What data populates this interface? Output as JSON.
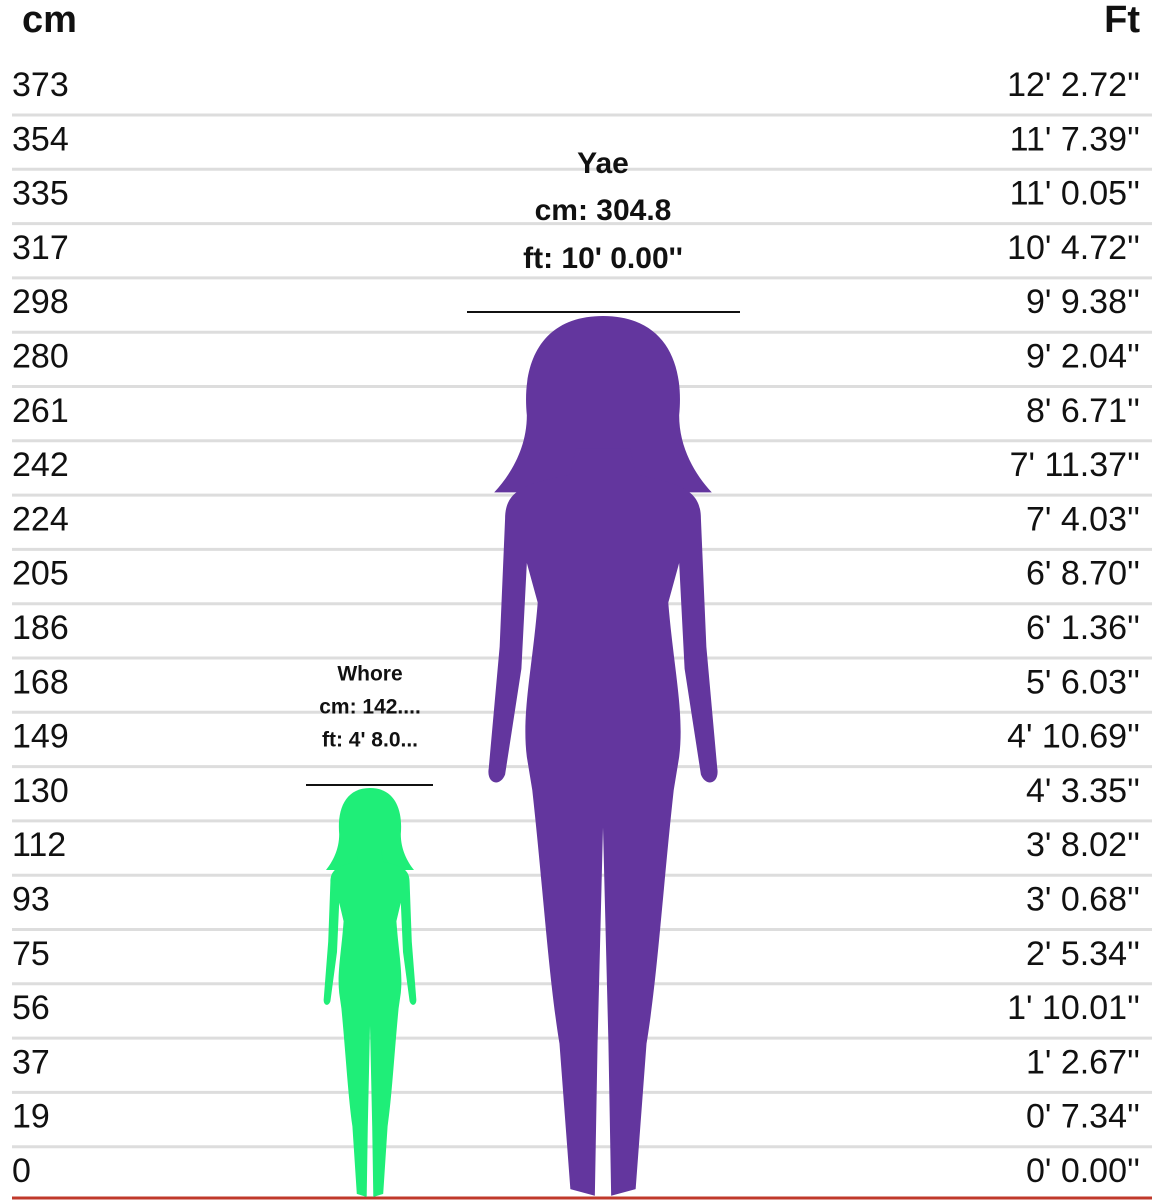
{
  "scale": {
    "cm_header": "cm",
    "ft_header": "Ft",
    "rows": [
      {
        "cm": "373",
        "ft": "12' 2.72''"
      },
      {
        "cm": "354",
        "ft": "11' 7.39''"
      },
      {
        "cm": "335",
        "ft": "11' 0.05''"
      },
      {
        "cm": "317",
        "ft": "10' 4.72''"
      },
      {
        "cm": "298",
        "ft": "9' 9.38''"
      },
      {
        "cm": "280",
        "ft": "9' 2.04''"
      },
      {
        "cm": "261",
        "ft": "8' 6.71''"
      },
      {
        "cm": "242",
        "ft": "7' 11.37''"
      },
      {
        "cm": "224",
        "ft": "7' 4.03''"
      },
      {
        "cm": "205",
        "ft": "6' 8.70''"
      },
      {
        "cm": "186",
        "ft": "6' 1.36''"
      },
      {
        "cm": "168",
        "ft": "5' 6.03''"
      },
      {
        "cm": "149",
        "ft": "4' 10.69''"
      },
      {
        "cm": "130",
        "ft": "4' 3.35''"
      },
      {
        "cm": "112",
        "ft": "3' 8.02''"
      },
      {
        "cm": "93",
        "ft": "3' 0.68''"
      },
      {
        "cm": "75",
        "ft": "2' 5.34''"
      },
      {
        "cm": "56",
        "ft": "1' 10.01''"
      },
      {
        "cm": "37",
        "ft": "1' 2.67''"
      },
      {
        "cm": "19",
        "ft": "0' 7.34''"
      },
      {
        "cm": "0",
        "ft": "0' 0.00''"
      }
    ]
  },
  "figures": [
    {
      "name": "Yae",
      "cm": "cm: 304.8",
      "ft": "ft: 10' 0.00''",
      "color": "#63369e"
    },
    {
      "name": "Whore",
      "cm": "cm: 142....",
      "ft": "ft: 4' 8.0...",
      "color": "#1fee78"
    }
  ]
}
